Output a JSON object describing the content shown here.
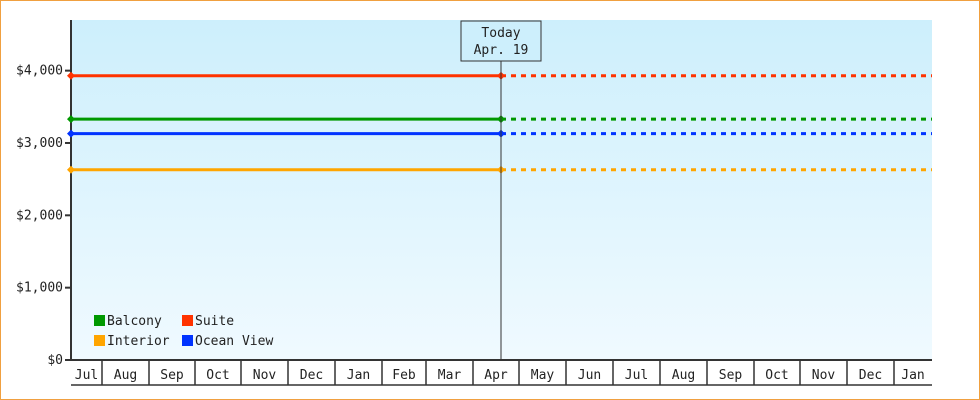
{
  "chart_data": {
    "type": "line",
    "title": "",
    "xlabel": "",
    "ylabel": "",
    "ylim": [
      0,
      4700
    ],
    "y_ticks": [
      0,
      1000,
      2000,
      3000,
      4000
    ],
    "y_tick_labels": [
      "$0",
      "$1,000",
      "$2,000",
      "$3,000",
      "$4,000"
    ],
    "x_tick_labels": [
      "Jul",
      "Aug",
      "Sep",
      "Oct",
      "Nov",
      "Dec",
      "Jan",
      "Feb",
      "Mar",
      "Apr",
      "May",
      "Jun",
      "Jul",
      "Aug",
      "Sep",
      "Oct",
      "Nov",
      "Dec",
      "Jan"
    ],
    "today": {
      "line1": "Today",
      "line2": "Apr. 19"
    },
    "series": [
      {
        "name": "Suite",
        "color": "#ff3300",
        "value": 3930
      },
      {
        "name": "Balcony",
        "color": "#009900",
        "value": 3330
      },
      {
        "name": "Ocean View",
        "color": "#0033ff",
        "value": 3130
      },
      {
        "name": "Interior",
        "color": "#ffa500",
        "value": 2630
      }
    ],
    "legend_order": [
      "Balcony",
      "Suite",
      "Interior",
      "Ocean View"
    ],
    "legend": "bottom-left",
    "background_gradient": [
      "#cdeffc",
      "#f0faff"
    ],
    "projection_style": "dashed after today"
  }
}
